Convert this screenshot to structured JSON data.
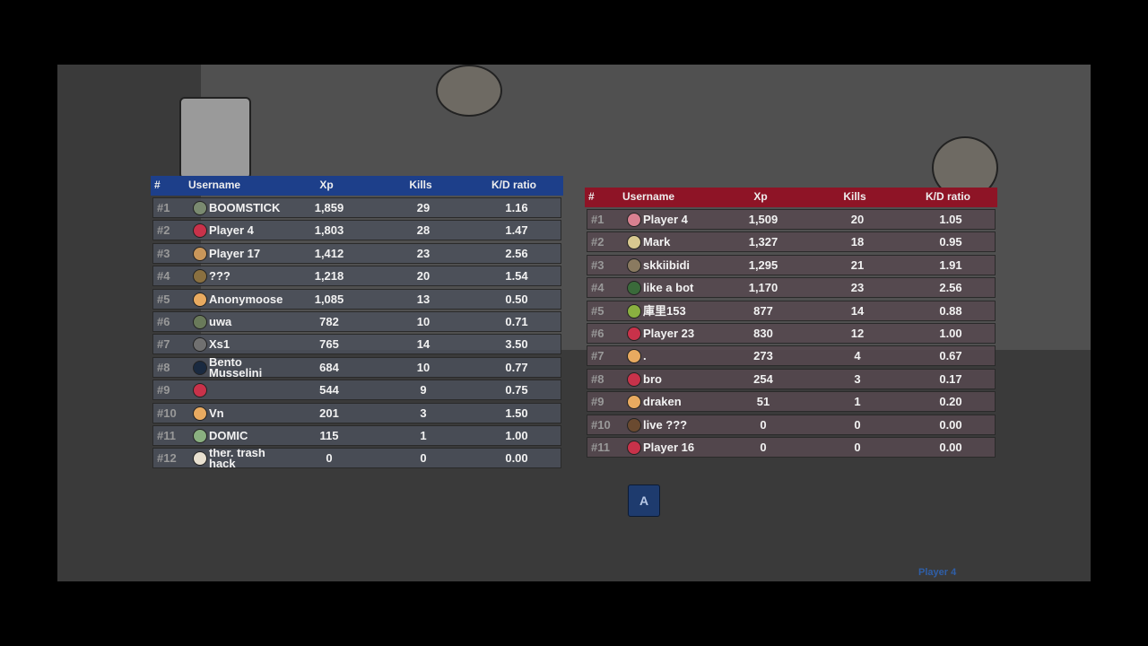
{
  "blue_team": {
    "header": [
      "#",
      "Username",
      "Xp",
      "Kills",
      "K/D ratio"
    ],
    "rows": [
      [
        "#1",
        "BOOMSTICK",
        "1,859",
        "29",
        "1.16"
      ],
      [
        "#2",
        "Player 4",
        "1,803",
        "28",
        "1.47"
      ],
      [
        "#3",
        "Player 17",
        "1,412",
        "23",
        "2.56"
      ],
      [
        "#4",
        "???",
        "1,218",
        "20",
        "1.54"
      ],
      [
        "#5",
        "Anonymoose",
        "1,085",
        "13",
        "0.50"
      ],
      [
        "#6",
        "uwa",
        "782",
        "10",
        "0.71"
      ],
      [
        "#7",
        "Xs1",
        "765",
        "14",
        "3.50"
      ],
      [
        "#8",
        "Bento Musselini",
        "684",
        "10",
        "0.77"
      ],
      [
        "#9",
        null,
        "544",
        "9",
        "0.75"
      ],
      [
        "#10",
        "Vn",
        "201",
        "3",
        "1.50"
      ],
      [
        "#11",
        "DOMIC",
        "115",
        "1",
        "1.00"
      ],
      [
        "#12",
        "ther. trash hack",
        "0",
        "0",
        "0.00"
      ]
    ]
  },
  "red_team": {
    "header": [
      "#",
      "Username",
      "Xp",
      "Kills",
      "K/D ratio"
    ],
    "rows": [
      [
        "#1",
        "Player 4",
        "1,509",
        "20",
        "1.05"
      ],
      [
        "#2",
        "Mark",
        "1,327",
        "18",
        "0.95"
      ],
      [
        "#3",
        "skkiibidi",
        "1,295",
        "21",
        "1.91"
      ],
      [
        "#4",
        "like a bot",
        "1,170",
        "23",
        "2.56"
      ],
      [
        "#5",
        "庫里153",
        "877",
        "14",
        "0.88"
      ],
      [
        "#6",
        "Player 23",
        "830",
        "12",
        "1.00"
      ],
      [
        "#7",
        ".",
        "273",
        "4",
        "0.67"
      ],
      [
        "#8",
        "bro",
        "254",
        "3",
        "0.17"
      ],
      [
        "#9",
        "draken",
        "51",
        "1",
        "0.20"
      ],
      [
        "#10",
        "live ???",
        "0",
        "0",
        "0.00"
      ],
      [
        "#11",
        "Player 16",
        "0",
        "0",
        "0.00"
      ]
    ]
  },
  "hud": {
    "button": "A",
    "player_label": "Player 4"
  }
}
